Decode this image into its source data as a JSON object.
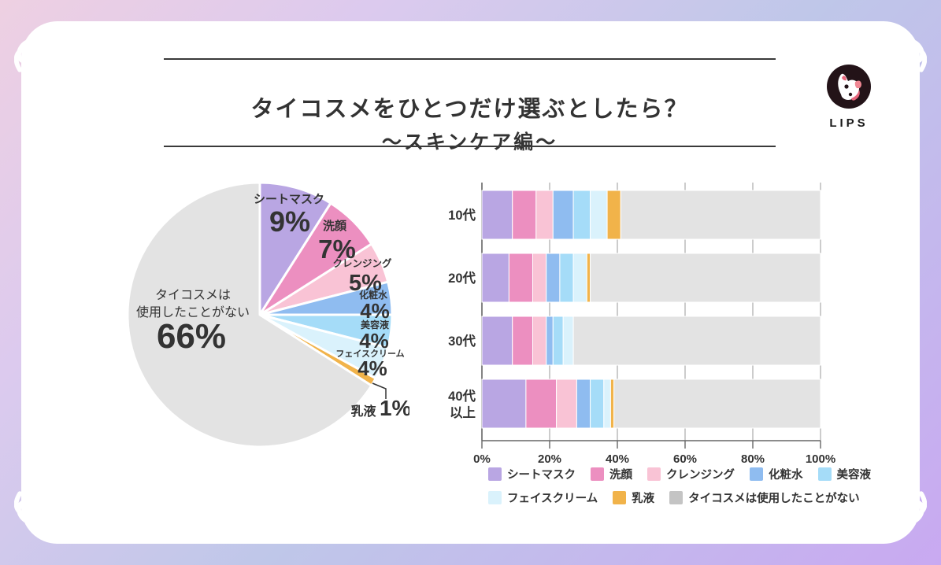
{
  "header": {
    "title": "タイコスメをひとつだけ選ぶとしたら？",
    "subtitle": "～スキンケア編～"
  },
  "logo": {
    "label": "LIPS"
  },
  "chart_data": [
    {
      "type": "pie",
      "start_angle_deg": -90,
      "direction": "clockwise",
      "slices": [
        {
          "label": "シートマスク",
          "value": 9,
          "display": "9%",
          "color": "#b9a6e3"
        },
        {
          "label": "洗顔",
          "value": 7,
          "display": "7%",
          "color": "#ec8fc0"
        },
        {
          "label": "クレンジング",
          "value": 5,
          "display": "5%",
          "color": "#f9c3d5"
        },
        {
          "label": "化粧水",
          "value": 4,
          "display": "4%",
          "color": "#8fbcf0"
        },
        {
          "label": "美容液",
          "value": 4,
          "display": "4%",
          "color": "#a5dcf8"
        },
        {
          "label": "フェイスクリーム",
          "value": 4,
          "display": "4%",
          "color": "#daf2fc"
        },
        {
          "label": "乳液",
          "value": 1,
          "display": "1%",
          "color": "#f1b34a"
        },
        {
          "label": "タイコスメは使用したことがない",
          "value": 66,
          "display": "66%",
          "color": "#e3e3e3",
          "label_lines": [
            "タイコスメは",
            "使用したことがない"
          ]
        }
      ]
    },
    {
      "type": "bar",
      "orientation": "horizontal-stacked",
      "categories": [
        "10代",
        "20代",
        "30代",
        "40代以上"
      ],
      "category_lines": [
        [
          "10代"
        ],
        [
          "20代"
        ],
        [
          "30代"
        ],
        [
          "40代",
          "以上"
        ]
      ],
      "series": [
        {
          "name": "シートマスク",
          "color": "#b9a6e3",
          "values": [
            9,
            8,
            9,
            13
          ]
        },
        {
          "name": "洗顔",
          "color": "#ec8fc0",
          "values": [
            7,
            7,
            6,
            9
          ]
        },
        {
          "name": "クレンジング",
          "color": "#f9c3d5",
          "values": [
            5,
            4,
            4,
            6
          ]
        },
        {
          "name": "化粧水",
          "color": "#8fbcf0",
          "values": [
            6,
            4,
            2,
            4
          ]
        },
        {
          "name": "美容液",
          "color": "#a5dcf8",
          "values": [
            5,
            4,
            3,
            4
          ]
        },
        {
          "name": "フェイスクリーム",
          "color": "#daf2fc",
          "values": [
            5,
            4,
            3,
            2
          ]
        },
        {
          "name": "乳液",
          "color": "#f1b34a",
          "values": [
            4,
            1,
            0,
            1
          ]
        },
        {
          "name": "タイコスメは使用したことがない",
          "color": "#e3e3e3",
          "values": [
            59,
            68,
            73,
            61
          ]
        }
      ],
      "x_ticks": [
        "0%",
        "20%",
        "40%",
        "60%",
        "80%",
        "100%"
      ],
      "xlim": [
        0,
        100
      ],
      "grid": true,
      "legend_position": "bottom"
    }
  ],
  "legend": {
    "items": [
      {
        "label": "シートマスク",
        "color": "#b9a6e3"
      },
      {
        "label": "洗顔",
        "color": "#ec8fc0"
      },
      {
        "label": "クレンジング",
        "color": "#f9c3d5"
      },
      {
        "label": "化粧水",
        "color": "#8fbcf0"
      },
      {
        "label": "美容液",
        "color": "#a5dcf8"
      },
      {
        "label": "フェイスクリーム",
        "color": "#daf2fc"
      },
      {
        "label": "乳液",
        "color": "#f1b34a"
      },
      {
        "label": "タイコスメは使用したことがない",
        "color": "#c4c4c4"
      }
    ]
  }
}
